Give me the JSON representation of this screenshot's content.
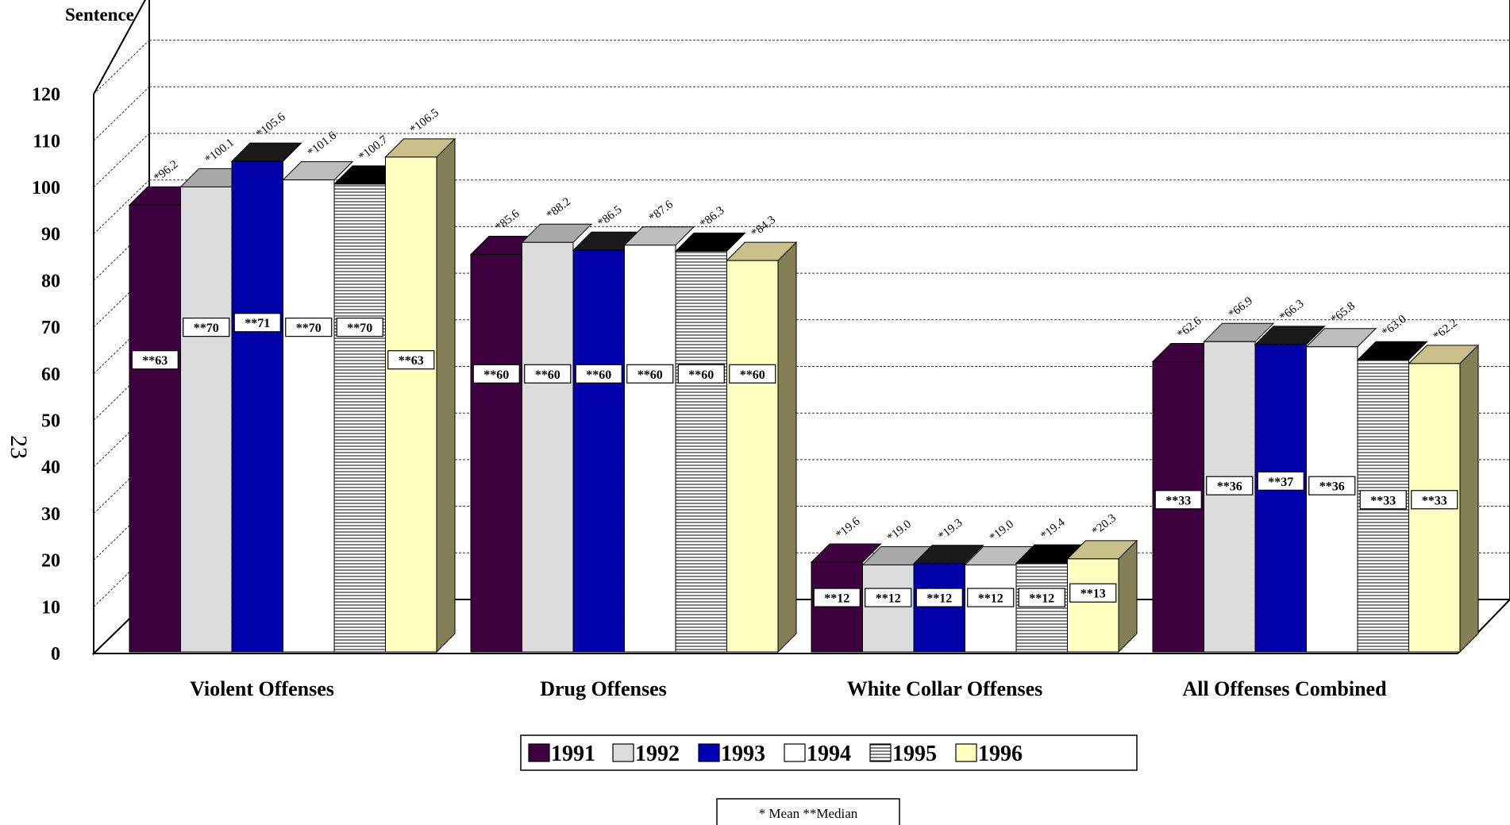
{
  "chart_data": {
    "type": "bar",
    "title": "Sentence (in months)",
    "page_number": "23",
    "ylim": [
      0,
      120
    ],
    "yticks": [
      "0",
      "10",
      "20",
      "30",
      "40",
      "50",
      "60",
      "70",
      "80",
      "90",
      "100",
      "110",
      "120"
    ],
    "grid": true,
    "legend_position": "bottom",
    "categories": [
      "Violent Offenses",
      "Drug Offenses",
      "White Collar Offenses",
      "All Offenses Combined"
    ],
    "series": [
      {
        "name": "1991",
        "color": "#3f003f",
        "pattern": "solid",
        "values": [
          96.2,
          85.6,
          19.6,
          62.6
        ],
        "mean_labels": [
          "*96.2",
          "*85.6",
          "*19.6",
          "*62.6"
        ],
        "median_values": [
          63,
          60,
          12,
          33
        ],
        "median_labels": [
          "**63",
          "**60",
          "**12",
          "**33"
        ]
      },
      {
        "name": "1992",
        "color": "#dcdcdc",
        "pattern": "solid",
        "values": [
          100.1,
          88.2,
          19.0,
          66.9
        ],
        "mean_labels": [
          "*100.1",
          "*88.2",
          "*19.0",
          "*66.9"
        ],
        "median_values": [
          70,
          60,
          12,
          36
        ],
        "median_labels": [
          "**70",
          "**60",
          "**12",
          "**36"
        ]
      },
      {
        "name": "1993",
        "color": "#0000cc",
        "pattern": "diagonal",
        "values": [
          105.6,
          86.5,
          19.3,
          66.3
        ],
        "mean_labels": [
          "*105.6",
          "*86.5",
          "*19.3",
          "*66.3"
        ],
        "median_values": [
          71,
          60,
          12,
          37
        ],
        "median_labels": [
          "**71",
          "**60",
          "**12",
          "**37"
        ]
      },
      {
        "name": "1994",
        "color": "#ffffff",
        "pattern": "solid",
        "values": [
          101.6,
          87.6,
          19.0,
          65.8
        ],
        "mean_labels": [
          "*101.6",
          "*87.6",
          "*19.0",
          "*65.8"
        ],
        "median_values": [
          70,
          60,
          12,
          36
        ],
        "median_labels": [
          "**70",
          "**60",
          "**12",
          "**36"
        ]
      },
      {
        "name": "1995",
        "color": "#ffffff",
        "pattern": "horizontal",
        "values": [
          100.7,
          86.3,
          19.4,
          63.0
        ],
        "mean_labels": [
          "*100.7",
          "*86.3",
          "*19.4",
          "*63.0"
        ],
        "median_values": [
          70,
          60,
          12,
          33
        ],
        "median_labels": [
          "**70",
          "**60",
          "**12",
          "**33"
        ]
      },
      {
        "name": "1996",
        "color": "#ffffc0",
        "pattern": "solid",
        "values": [
          106.5,
          84.3,
          20.3,
          62.2
        ],
        "mean_labels": [
          "*106.5",
          "*84.3",
          "*20.3",
          "*62.2"
        ],
        "median_values": [
          63,
          60,
          13,
          33
        ],
        "median_labels": [
          "**63",
          "**60",
          "**13",
          "**33"
        ]
      }
    ],
    "footnote": "* Mean  **Median"
  }
}
